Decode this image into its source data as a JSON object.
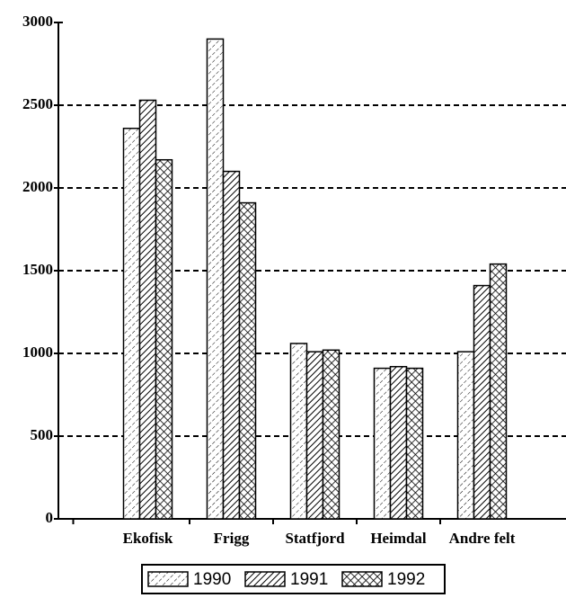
{
  "chart_data": {
    "type": "bar",
    "categories": [
      "Ekofisk",
      "Frigg",
      "Statfjord",
      "Heimdal",
      "Andre felt"
    ],
    "series": [
      {
        "name": "1990",
        "values": [
          2360,
          2900,
          1060,
          910,
          1010
        ]
      },
      {
        "name": "1991",
        "values": [
          2530,
          2100,
          1010,
          920,
          1410
        ]
      },
      {
        "name": "1992",
        "values": [
          2170,
          1910,
          1020,
          910,
          1540
        ]
      }
    ],
    "ylim": [
      0,
      3000
    ],
    "yticks": [
      0,
      500,
      1000,
      1500,
      2000,
      2500,
      3000
    ],
    "grid": true
  }
}
